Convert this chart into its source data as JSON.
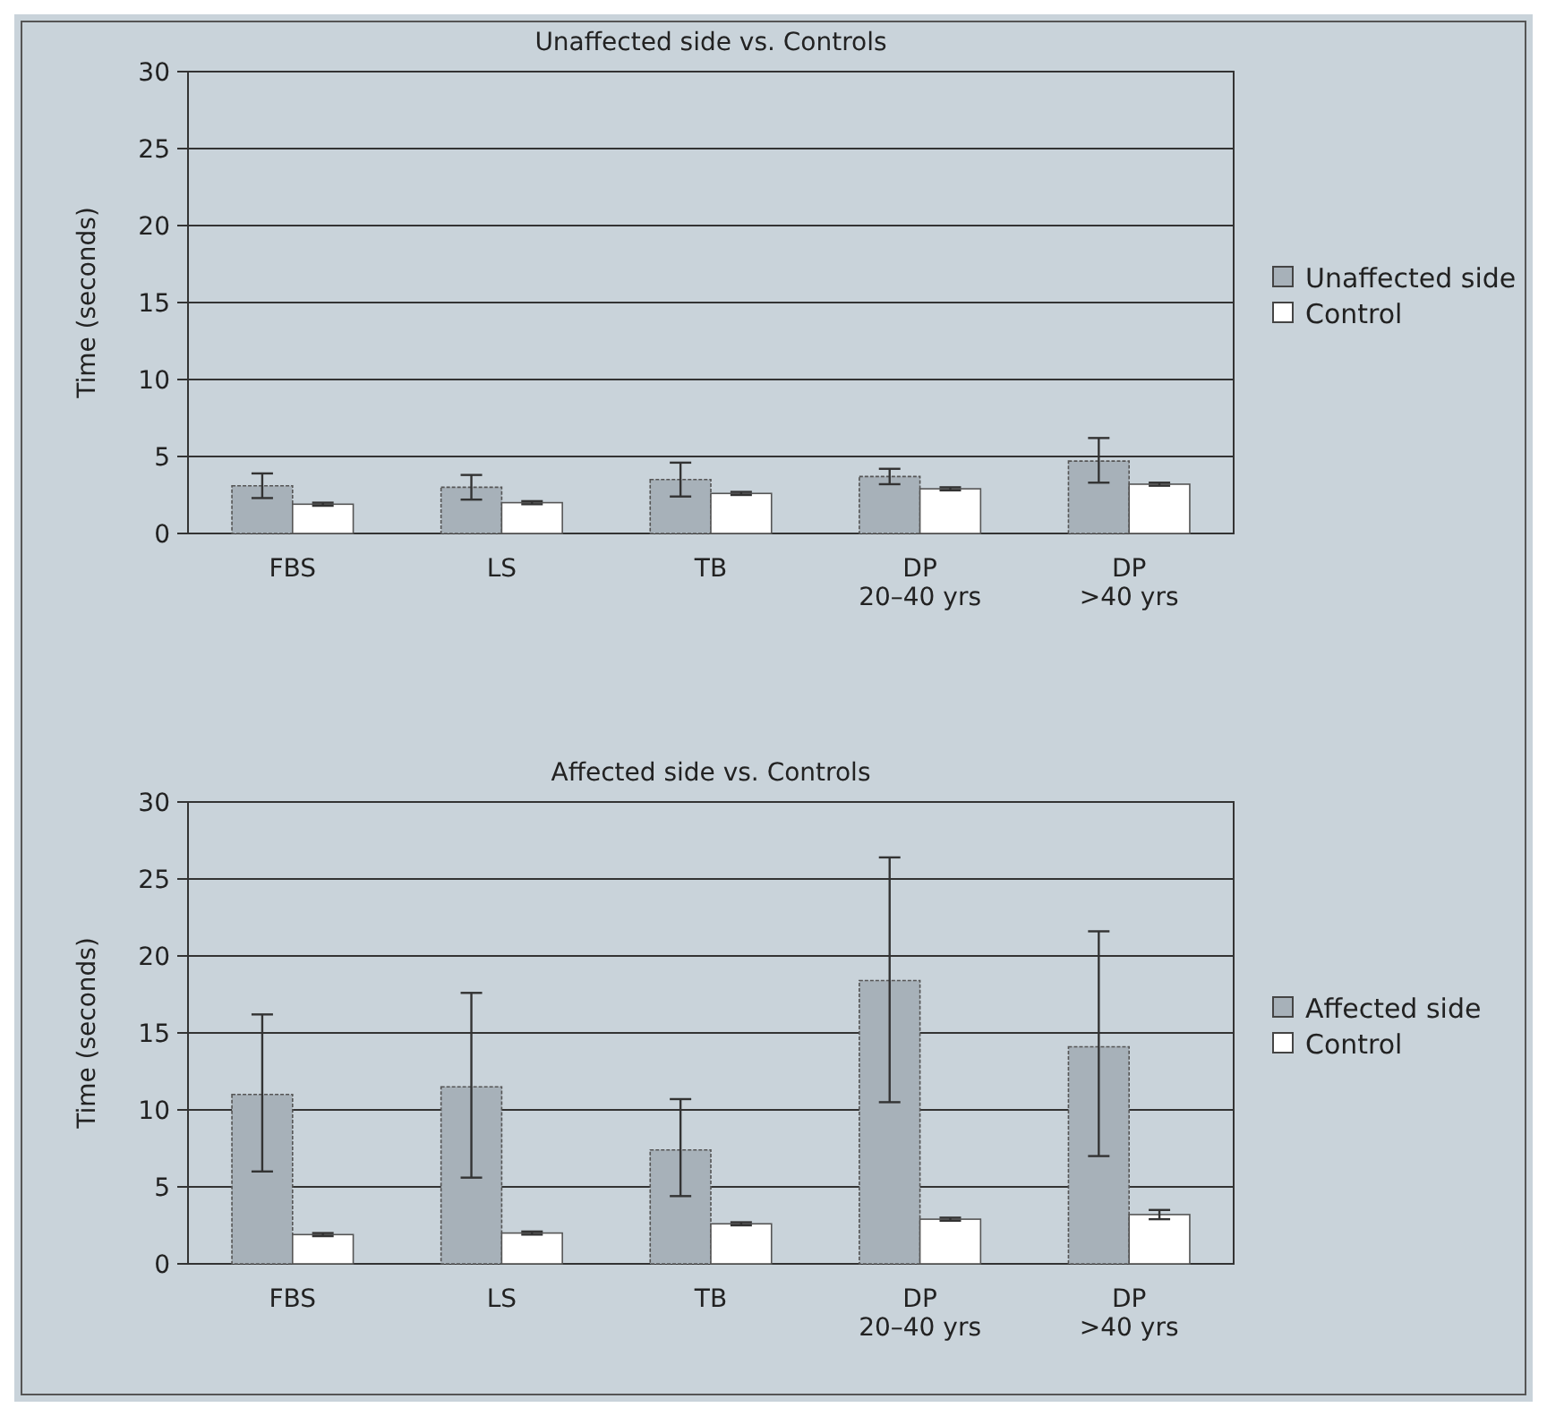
{
  "chart_data": [
    {
      "type": "bar",
      "title": "Unaffected side vs. Controls",
      "ylabel": "Time (seconds)",
      "categories": [
        "FBS",
        "LS",
        "TB",
        "DP\n20–40 yrs",
        "DP\n>40 yrs"
      ],
      "series": [
        {
          "name": "Unaffected side",
          "color": "#a7b1b9",
          "values": [
            3.1,
            3.0,
            3.5,
            3.7,
            4.7
          ],
          "errors": [
            [
              2.3,
              3.9
            ],
            [
              2.2,
              3.8
            ],
            [
              2.4,
              4.6
            ],
            [
              3.2,
              4.2
            ],
            [
              3.3,
              6.2
            ]
          ]
        },
        {
          "name": "Control",
          "color": "#ffffff",
          "values": [
            1.9,
            2.0,
            2.6,
            2.9,
            3.2
          ],
          "errors": [
            0.1,
            0.1,
            0.1,
            0.1,
            0.1
          ]
        }
      ],
      "ylim": [
        0,
        30
      ],
      "yticks": [
        0,
        5,
        10,
        15,
        20,
        25,
        30
      ],
      "grid": "y",
      "legend": "right"
    },
    {
      "type": "bar",
      "title": "Affected side vs. Controls",
      "ylabel": "Time (seconds)",
      "categories": [
        "FBS",
        "LS",
        "TB",
        "DP\n20–40 yrs",
        "DP\n>40 yrs"
      ],
      "series": [
        {
          "name": "Affected side",
          "color": "#a7b1b9",
          "values": [
            11.0,
            11.5,
            7.4,
            18.4,
            14.1
          ],
          "errors": [
            [
              6.0,
              16.2
            ],
            [
              5.6,
              17.6
            ],
            [
              4.4,
              10.7
            ],
            [
              10.5,
              26.4
            ],
            [
              7.0,
              21.6
            ]
          ]
        },
        {
          "name": "Control",
          "color": "#ffffff",
          "values": [
            1.9,
            2.0,
            2.6,
            2.9,
            3.2
          ],
          "errors": [
            0.1,
            0.1,
            0.1,
            0.1,
            0.3
          ]
        }
      ],
      "ylim": [
        0,
        30
      ],
      "yticks": [
        0,
        5,
        10,
        15,
        20,
        25,
        30
      ],
      "grid": "y",
      "legend": "right"
    }
  ]
}
